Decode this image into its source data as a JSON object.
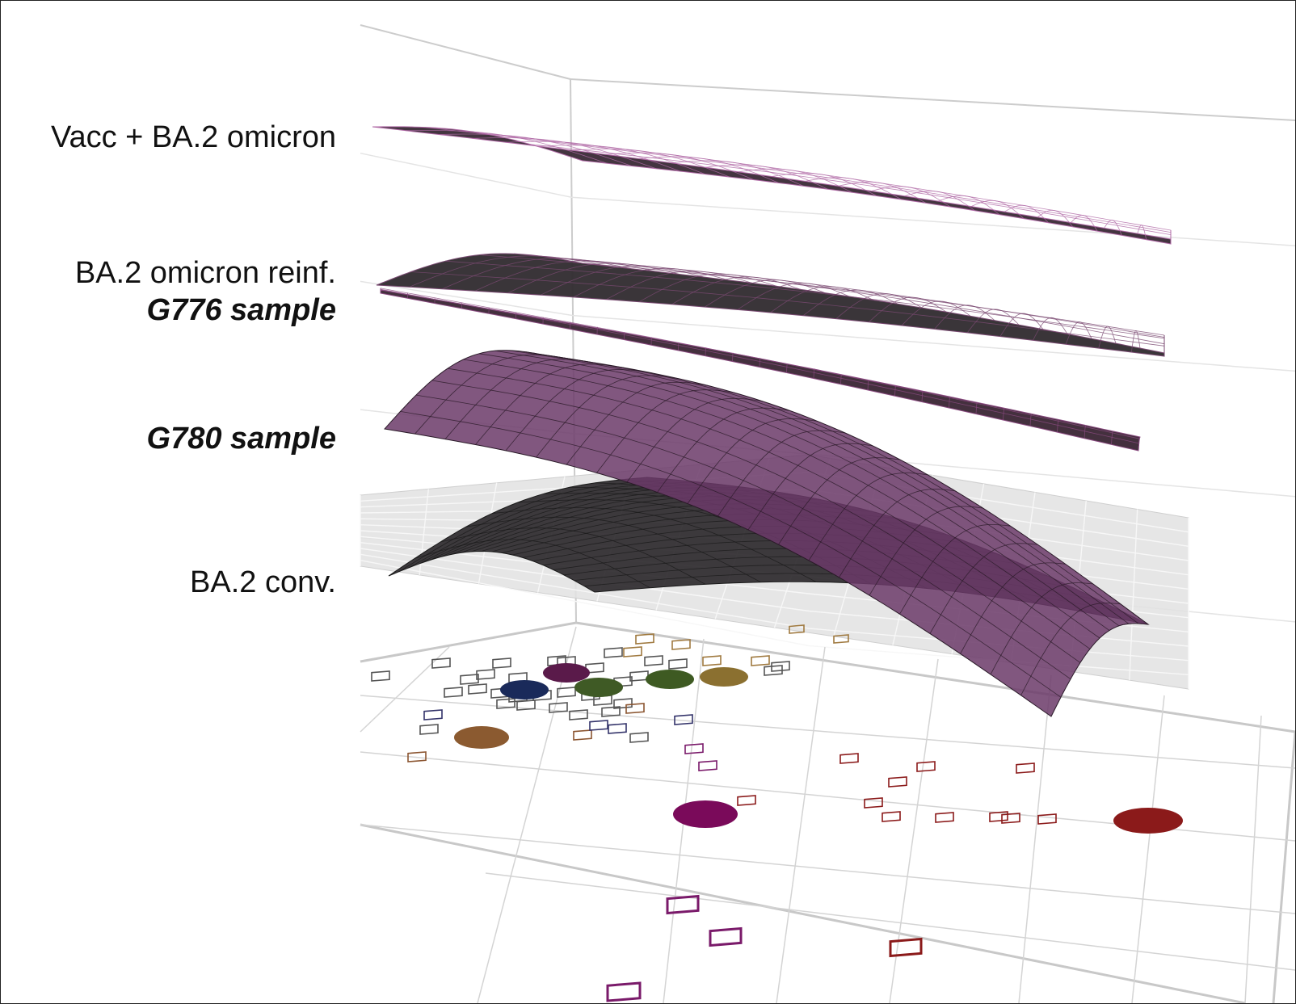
{
  "chart_data": {
    "type": "surface3d",
    "surface_labels": [
      {
        "text": "Vacc + BA.2 omicron",
        "style": "normal"
      },
      {
        "text": "BA.2 omicron reinf.",
        "style": "normal"
      },
      {
        "text": "G776 sample",
        "style": "bold-italic"
      },
      {
        "text": "G780 sample",
        "style": "bold-italic"
      },
      {
        "text": "BA.2 conv.",
        "style": "normal"
      }
    ],
    "colors": {
      "surface_dark": "#3a2a36",
      "surface_purple": "#6b3a68",
      "grid": "#cccccc",
      "floor_plane": "#e2e2e2",
      "antigen_red": "#8b1a1a",
      "antigen_magenta": "#7a0a5a",
      "antigen_brown": "#8b5a30",
      "antigen_olive": "#4a5a20",
      "antigen_gold": "#8b7030",
      "antigen_navy": "#1a2a5a",
      "antigen_purple": "#5a1a4a"
    },
    "antigens": [
      {
        "name": "navy",
        "color": "#1a2a5a"
      },
      {
        "name": "purple",
        "color": "#5a1a4a"
      },
      {
        "name": "olive",
        "color": "#3f5a25"
      },
      {
        "name": "darkgreen",
        "color": "#3e5a22"
      },
      {
        "name": "gold",
        "color": "#8b7030"
      },
      {
        "name": "brown",
        "color": "#8b5a30"
      },
      {
        "name": "magenta",
        "color": "#7a0a5a"
      },
      {
        "name": "red",
        "color": "#8b1a1a"
      }
    ]
  }
}
